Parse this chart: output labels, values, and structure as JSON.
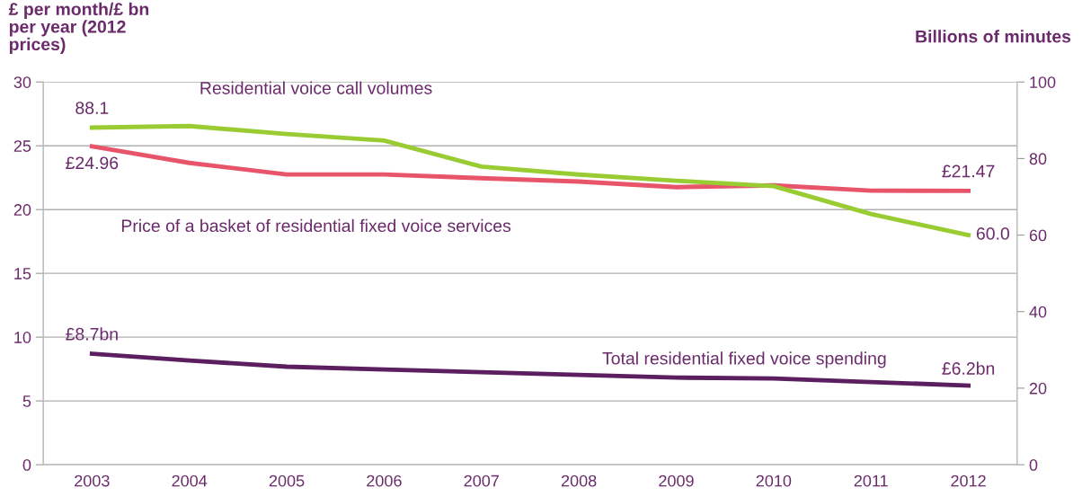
{
  "chart_data": {
    "type": "line",
    "ylabel": "£ per month/£ bn per year (2012 prices)",
    "y2label": "Billions of minutes",
    "categories": [
      "2003",
      "2004",
      "2005",
      "2006",
      "2007",
      "2008",
      "2009",
      "2010",
      "2011",
      "2012"
    ],
    "ylim": [
      0,
      30
    ],
    "yticks": [
      0,
      5,
      10,
      15,
      20,
      25,
      30
    ],
    "y2lim": [
      0,
      100
    ],
    "y2ticks": [
      0,
      20,
      40,
      60,
      80,
      100
    ],
    "grid": "y",
    "legend": false,
    "marker": "none",
    "line_style": "solid",
    "series": [
      {
        "name": "Residential voice call volumes",
        "color": "#99cc33",
        "axis": "y2",
        "values": [
          88.1,
          88.5,
          86.4,
          84.7,
          77.9,
          75.8,
          74.2,
          72.8,
          65.5,
          60.0
        ],
        "value_labels": [
          "88.1",
          null,
          null,
          null,
          null,
          null,
          null,
          null,
          null,
          "60.0"
        ]
      },
      {
        "name": "Price of a basket of residential fixed voice services",
        "color": "#e8546a",
        "values": [
          24.96,
          23.66,
          22.75,
          22.75,
          22.46,
          22.2,
          21.76,
          21.9,
          21.48,
          21.47
        ],
        "value_labels": [
          "£24.96",
          null,
          null,
          null,
          null,
          null,
          null,
          null,
          null,
          "£21.47"
        ]
      },
      {
        "name": "Total residential fixed voice spending",
        "color": "#5b1e5e",
        "values": [
          8.7,
          8.17,
          7.68,
          7.46,
          7.25,
          7.04,
          6.83,
          6.76,
          6.48,
          6.2
        ],
        "value_labels": [
          "£8.7bn",
          null,
          null,
          null,
          null,
          null,
          null,
          null,
          null,
          "£6.2bn"
        ]
      }
    ]
  }
}
